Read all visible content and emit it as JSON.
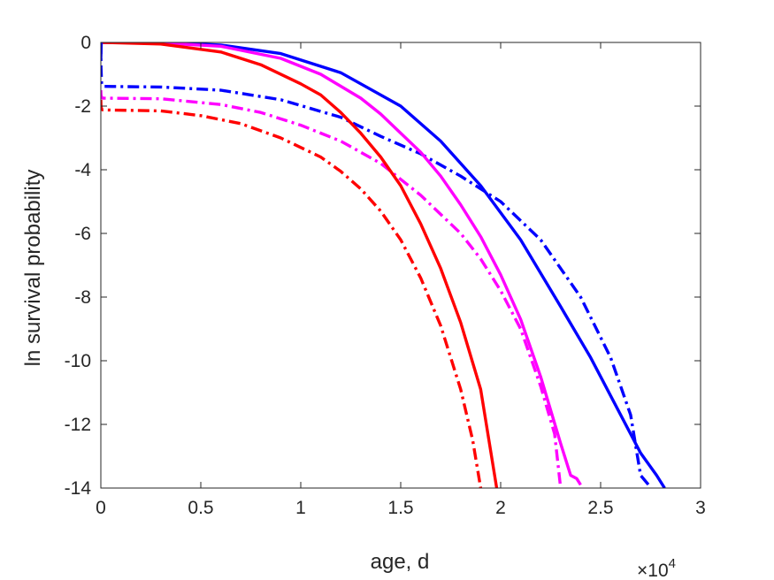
{
  "chart_data": {
    "type": "line",
    "xlabel": "age, d",
    "ylabel": "ln survival probability",
    "x_multiplier": "×10",
    "x_multiplier_exp": "4",
    "xlim": [
      0,
      30000
    ],
    "ylim": [
      -14,
      0
    ],
    "x_ticks": [
      0,
      5000,
      10000,
      15000,
      20000,
      25000,
      30000
    ],
    "x_tick_labels": [
      "0",
      "0.5",
      "1",
      "1.5",
      "2",
      "2.5",
      "3"
    ],
    "y_ticks": [
      0,
      -2,
      -4,
      -6,
      -8,
      -10,
      -12,
      -14
    ],
    "y_tick_labels": [
      "0",
      "-2",
      "-4",
      "-6",
      "-8",
      "-10",
      "-12",
      "-14"
    ],
    "grid": false,
    "series": [
      {
        "color": "#0000ff",
        "style": "solid",
        "x": [
          0,
          20,
          100,
          3000,
          6000,
          9000,
          12000,
          15000,
          17000,
          19000,
          21000,
          23000,
          24500,
          26000,
          27000,
          27800,
          28200
        ],
        "y": [
          -0.5,
          0.0,
          0.0,
          0.0,
          -0.08,
          -0.35,
          -0.95,
          -2.0,
          -3.1,
          -4.5,
          -6.2,
          -8.3,
          -9.9,
          -11.7,
          -12.9,
          -13.6,
          -14.0
        ]
      },
      {
        "color": "#0000ff",
        "style": "dashdot",
        "x": [
          0,
          10,
          40,
          100,
          3000,
          6000,
          9000,
          12000,
          14000,
          16000,
          18000,
          20000,
          22000,
          24000,
          25500,
          26500,
          27000,
          27400
        ],
        "y": [
          0.0,
          -0.8,
          -1.3,
          -1.38,
          -1.4,
          -1.5,
          -1.8,
          -2.35,
          -2.95,
          -3.5,
          -4.2,
          -5.0,
          -6.2,
          -8.0,
          -9.9,
          -11.7,
          -13.6,
          -13.9
        ]
      },
      {
        "color": "#ff00ff",
        "style": "solid",
        "x": [
          100,
          3000,
          6000,
          9000,
          11000,
          13000,
          14000,
          15000,
          16000,
          17000,
          18000,
          19000,
          20000,
          21000,
          22000,
          23000,
          23500,
          23800,
          24000
        ],
        "y": [
          0.0,
          -0.02,
          -0.12,
          -0.5,
          -1.0,
          -1.75,
          -2.25,
          -2.85,
          -3.45,
          -4.2,
          -5.1,
          -6.1,
          -7.3,
          -8.7,
          -10.5,
          -12.6,
          -13.6,
          -13.7,
          -13.9
        ]
      },
      {
        "color": "#ff00ff",
        "style": "dashdot",
        "x": [
          0,
          10,
          40,
          100,
          3000,
          6000,
          8000,
          10000,
          12000,
          14000,
          16000,
          18000,
          19000,
          20000,
          21000,
          22000,
          22700,
          23000
        ],
        "y": [
          -1.5,
          -1.65,
          -1.72,
          -1.75,
          -1.77,
          -1.95,
          -2.2,
          -2.6,
          -3.1,
          -3.8,
          -4.8,
          -6.0,
          -6.8,
          -7.8,
          -9.0,
          -10.8,
          -12.3,
          -14.0
        ]
      },
      {
        "color": "#ff0000",
        "style": "solid",
        "x": [
          100,
          3000,
          6000,
          8000,
          10000,
          11000,
          12000,
          13000,
          14000,
          15000,
          16000,
          17000,
          18000,
          19000,
          19800
        ],
        "y": [
          0.0,
          -0.05,
          -0.3,
          -0.7,
          -1.3,
          -1.65,
          -2.2,
          -2.85,
          -3.6,
          -4.5,
          -5.7,
          -7.1,
          -8.8,
          -10.9,
          -14.0
        ]
      },
      {
        "color": "#ff0000",
        "style": "dashdot",
        "x": [
          0,
          10,
          40,
          100,
          3000,
          5000,
          7000,
          9000,
          10000,
          11000,
          12000,
          13000,
          14000,
          15000,
          16000,
          17000,
          18000,
          18600,
          19000
        ],
        "y": [
          -1.8,
          -2.0,
          -2.1,
          -2.12,
          -2.15,
          -2.3,
          -2.55,
          -3.0,
          -3.3,
          -3.6,
          -4.05,
          -4.6,
          -5.3,
          -6.2,
          -7.4,
          -8.9,
          -10.9,
          -12.5,
          -14.0
        ]
      }
    ]
  }
}
